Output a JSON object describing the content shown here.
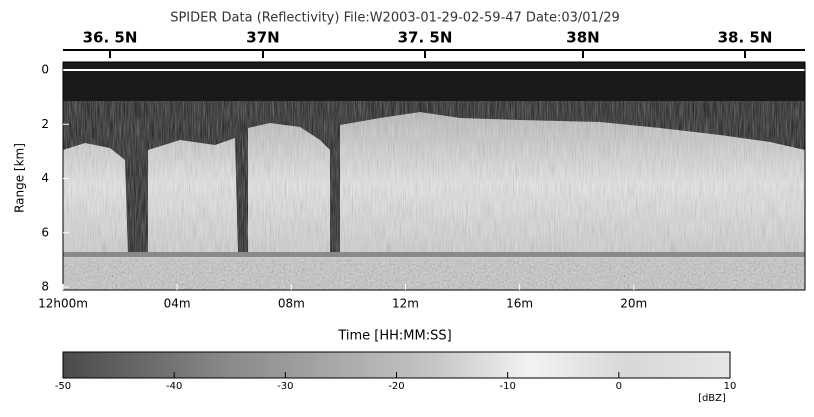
{
  "chart_data": {
    "type": "image",
    "title": "SPIDER Data (Reflectivity) File:W2003-01-29-02-59-47 Date:03/01/29",
    "top_labels": [
      "36. 5N",
      "37N",
      "37. 5N",
      "38N",
      "38. 5N"
    ],
    "ylabel": "Range [km]",
    "ylim": [
      0,
      8
    ],
    "yticks": [
      0,
      2,
      4,
      6,
      8
    ],
    "xlabel": "Time [HH:MM:SS]",
    "xlim": [
      0,
      26
    ],
    "xticks": [
      {
        "value": 0,
        "label": "12h00m"
      },
      {
        "value": 4,
        "label": "04m"
      },
      {
        "value": 8,
        "label": "08m"
      },
      {
        "value": 12,
        "label": "12m"
      },
      {
        "value": 16,
        "label": "16m"
      },
      {
        "value": 20,
        "label": "20m"
      }
    ],
    "colorbar": {
      "label": "[dBZ]",
      "lim": [
        -50,
        10
      ],
      "ticks": [
        -50,
        -40,
        -30,
        -20,
        -10,
        0,
        10
      ]
    }
  }
}
